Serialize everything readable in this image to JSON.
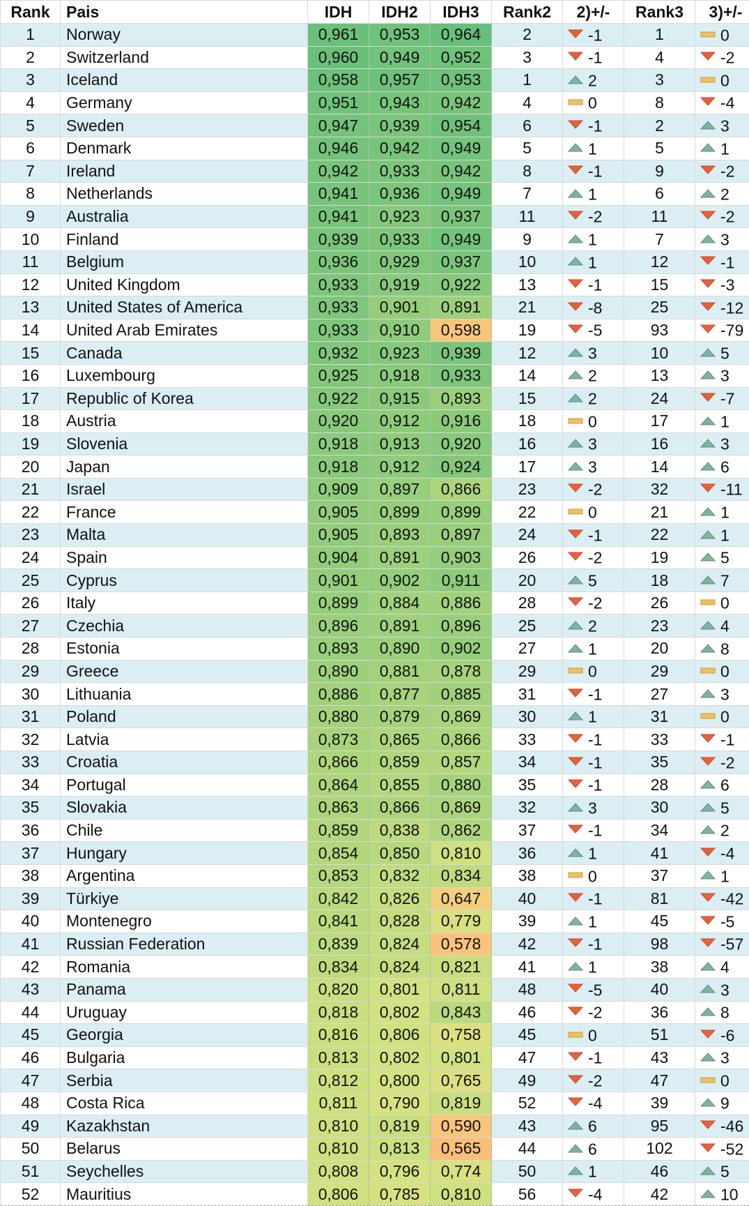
{
  "headers": [
    "Rank",
    "Pais",
    "IDH",
    "IDH2",
    "IDH3",
    "Rank2",
    "2)+/-",
    "Rank3",
    "3)+/-"
  ],
  "indicator_colors": {
    "up": "#7fb3a0",
    "down": "#e8603c",
    "same": "#f0c060"
  },
  "rows": [
    {
      "rank": "1",
      "pais": "Norway",
      "idh": "0,961",
      "idh2": "0,953",
      "idh3": "0,964",
      "rank2": "2",
      "c2": "-1",
      "rank3": "1",
      "c3": "0"
    },
    {
      "rank": "2",
      "pais": "Switzerland",
      "idh": "0,960",
      "idh2": "0,949",
      "idh3": "0,952",
      "rank2": "3",
      "c2": "-1",
      "rank3": "4",
      "c3": "-2"
    },
    {
      "rank": "3",
      "pais": "Iceland",
      "idh": "0,958",
      "idh2": "0,957",
      "idh3": "0,953",
      "rank2": "1",
      "c2": "2",
      "rank3": "3",
      "c3": "0"
    },
    {
      "rank": "4",
      "pais": "Germany",
      "idh": "0,951",
      "idh2": "0,943",
      "idh3": "0,942",
      "rank2": "4",
      "c2": "0",
      "rank3": "8",
      "c3": "-4"
    },
    {
      "rank": "5",
      "pais": "Sweden",
      "idh": "0,947",
      "idh2": "0,939",
      "idh3": "0,954",
      "rank2": "6",
      "c2": "-1",
      "rank3": "2",
      "c3": "3"
    },
    {
      "rank": "6",
      "pais": "Denmark",
      "idh": "0,946",
      "idh2": "0,942",
      "idh3": "0,949",
      "rank2": "5",
      "c2": "1",
      "rank3": "5",
      "c3": "1"
    },
    {
      "rank": "7",
      "pais": "Ireland",
      "idh": "0,942",
      "idh2": "0,933",
      "idh3": "0,942",
      "rank2": "8",
      "c2": "-1",
      "rank3": "9",
      "c3": "-2"
    },
    {
      "rank": "8",
      "pais": "Netherlands",
      "idh": "0,941",
      "idh2": "0,936",
      "idh3": "0,949",
      "rank2": "7",
      "c2": "1",
      "rank3": "6",
      "c3": "2"
    },
    {
      "rank": "9",
      "pais": "Australia",
      "idh": "0,941",
      "idh2": "0,923",
      "idh3": "0,937",
      "rank2": "11",
      "c2": "-2",
      "rank3": "11",
      "c3": "-2"
    },
    {
      "rank": "10",
      "pais": "Finland",
      "idh": "0,939",
      "idh2": "0,933",
      "idh3": "0,949",
      "rank2": "9",
      "c2": "1",
      "rank3": "7",
      "c3": "3"
    },
    {
      "rank": "11",
      "pais": "Belgium",
      "idh": "0,936",
      "idh2": "0,929",
      "idh3": "0,937",
      "rank2": "10",
      "c2": "1",
      "rank3": "12",
      "c3": "-1"
    },
    {
      "rank": "12",
      "pais": "United Kingdom",
      "idh": "0,933",
      "idh2": "0,919",
      "idh3": "0,922",
      "rank2": "13",
      "c2": "-1",
      "rank3": "15",
      "c3": "-3"
    },
    {
      "rank": "13",
      "pais": "United States of America",
      "idh": "0,933",
      "idh2": "0,901",
      "idh3": "0,891",
      "rank2": "21",
      "c2": "-8",
      "rank3": "25",
      "c3": "-12"
    },
    {
      "rank": "14",
      "pais": "United Arab Emirates",
      "idh": "0,933",
      "idh2": "0,910",
      "idh3": "0,598",
      "rank2": "19",
      "c2": "-5",
      "rank3": "93",
      "c3": "-79"
    },
    {
      "rank": "15",
      "pais": "Canada",
      "idh": "0,932",
      "idh2": "0,923",
      "idh3": "0,939",
      "rank2": "12",
      "c2": "3",
      "rank3": "10",
      "c3": "5"
    },
    {
      "rank": "16",
      "pais": "Luxembourg",
      "idh": "0,925",
      "idh2": "0,918",
      "idh3": "0,933",
      "rank2": "14",
      "c2": "2",
      "rank3": "13",
      "c3": "3"
    },
    {
      "rank": "17",
      "pais": "Republic of Korea",
      "idh": "0,922",
      "idh2": "0,915",
      "idh3": "0,893",
      "rank2": "15",
      "c2": "2",
      "rank3": "24",
      "c3": "-7"
    },
    {
      "rank": "18",
      "pais": "Austria",
      "idh": "0,920",
      "idh2": "0,912",
      "idh3": "0,916",
      "rank2": "18",
      "c2": "0",
      "rank3": "17",
      "c3": "1"
    },
    {
      "rank": "19",
      "pais": "Slovenia",
      "idh": "0,918",
      "idh2": "0,913",
      "idh3": "0,920",
      "rank2": "16",
      "c2": "3",
      "rank3": "16",
      "c3": "3"
    },
    {
      "rank": "20",
      "pais": "Japan",
      "idh": "0,918",
      "idh2": "0,912",
      "idh3": "0,924",
      "rank2": "17",
      "c2": "3",
      "rank3": "14",
      "c3": "6"
    },
    {
      "rank": "21",
      "pais": "Israel",
      "idh": "0,909",
      "idh2": "0,897",
      "idh3": "0,866",
      "rank2": "23",
      "c2": "-2",
      "rank3": "32",
      "c3": "-11"
    },
    {
      "rank": "22",
      "pais": "France",
      "idh": "0,905",
      "idh2": "0,899",
      "idh3": "0,899",
      "rank2": "22",
      "c2": "0",
      "rank3": "21",
      "c3": "1"
    },
    {
      "rank": "23",
      "pais": "Malta",
      "idh": "0,905",
      "idh2": "0,893",
      "idh3": "0,897",
      "rank2": "24",
      "c2": "-1",
      "rank3": "22",
      "c3": "1"
    },
    {
      "rank": "24",
      "pais": "Spain",
      "idh": "0,904",
      "idh2": "0,891",
      "idh3": "0,903",
      "rank2": "26",
      "c2": "-2",
      "rank3": "19",
      "c3": "5"
    },
    {
      "rank": "25",
      "pais": "Cyprus",
      "idh": "0,901",
      "idh2": "0,902",
      "idh3": "0,911",
      "rank2": "20",
      "c2": "5",
      "rank3": "18",
      "c3": "7"
    },
    {
      "rank": "26",
      "pais": "Italy",
      "idh": "0,899",
      "idh2": "0,884",
      "idh3": "0,886",
      "rank2": "28",
      "c2": "-2",
      "rank3": "26",
      "c3": "0"
    },
    {
      "rank": "27",
      "pais": "Czechia",
      "idh": "0,896",
      "idh2": "0,891",
      "idh3": "0,896",
      "rank2": "25",
      "c2": "2",
      "rank3": "23",
      "c3": "4"
    },
    {
      "rank": "28",
      "pais": "Estonia",
      "idh": "0,893",
      "idh2": "0,890",
      "idh3": "0,902",
      "rank2": "27",
      "c2": "1",
      "rank3": "20",
      "c3": "8"
    },
    {
      "rank": "29",
      "pais": "Greece",
      "idh": "0,890",
      "idh2": "0,881",
      "idh3": "0,878",
      "rank2": "29",
      "c2": "0",
      "rank3": "29",
      "c3": "0"
    },
    {
      "rank": "30",
      "pais": "Lithuania",
      "idh": "0,886",
      "idh2": "0,877",
      "idh3": "0,885",
      "rank2": "31",
      "c2": "-1",
      "rank3": "27",
      "c3": "3"
    },
    {
      "rank": "31",
      "pais": "Poland",
      "idh": "0,880",
      "idh2": "0,879",
      "idh3": "0,869",
      "rank2": "30",
      "c2": "1",
      "rank3": "31",
      "c3": "0"
    },
    {
      "rank": "32",
      "pais": "Latvia",
      "idh": "0,873",
      "idh2": "0,865",
      "idh3": "0,866",
      "rank2": "33",
      "c2": "-1",
      "rank3": "33",
      "c3": "-1"
    },
    {
      "rank": "33",
      "pais": "Croatia",
      "idh": "0,866",
      "idh2": "0,859",
      "idh3": "0,857",
      "rank2": "34",
      "c2": "-1",
      "rank3": "35",
      "c3": "-2"
    },
    {
      "rank": "34",
      "pais": "Portugal",
      "idh": "0,864",
      "idh2": "0,855",
      "idh3": "0,880",
      "rank2": "35",
      "c2": "-1",
      "rank3": "28",
      "c3": "6"
    },
    {
      "rank": "35",
      "pais": "Slovakia",
      "idh": "0,863",
      "idh2": "0,866",
      "idh3": "0,869",
      "rank2": "32",
      "c2": "3",
      "rank3": "30",
      "c3": "5"
    },
    {
      "rank": "36",
      "pais": "Chile",
      "idh": "0,859",
      "idh2": "0,838",
      "idh3": "0,862",
      "rank2": "37",
      "c2": "-1",
      "rank3": "34",
      "c3": "2"
    },
    {
      "rank": "37",
      "pais": "Hungary",
      "idh": "0,854",
      "idh2": "0,850",
      "idh3": "0,810",
      "rank2": "36",
      "c2": "1",
      "rank3": "41",
      "c3": "-4"
    },
    {
      "rank": "38",
      "pais": "Argentina",
      "idh": "0,853",
      "idh2": "0,832",
      "idh3": "0,834",
      "rank2": "38",
      "c2": "0",
      "rank3": "37",
      "c3": "1"
    },
    {
      "rank": "39",
      "pais": "Türkiye",
      "idh": "0,842",
      "idh2": "0,826",
      "idh3": "0,647",
      "rank2": "40",
      "c2": "-1",
      "rank3": "81",
      "c3": "-42"
    },
    {
      "rank": "40",
      "pais": "Montenegro",
      "idh": "0,841",
      "idh2": "0,828",
      "idh3": "0,779",
      "rank2": "39",
      "c2": "1",
      "rank3": "45",
      "c3": "-5"
    },
    {
      "rank": "41",
      "pais": "Russian Federation",
      "idh": "0,839",
      "idh2": "0,824",
      "idh3": "0,578",
      "rank2": "42",
      "c2": "-1",
      "rank3": "98",
      "c3": "-57"
    },
    {
      "rank": "42",
      "pais": "Romania",
      "idh": "0,834",
      "idh2": "0,824",
      "idh3": "0,821",
      "rank2": "41",
      "c2": "1",
      "rank3": "38",
      "c3": "4"
    },
    {
      "rank": "43",
      "pais": "Panama",
      "idh": "0,820",
      "idh2": "0,801",
      "idh3": "0,811",
      "rank2": "48",
      "c2": "-5",
      "rank3": "40",
      "c3": "3"
    },
    {
      "rank": "44",
      "pais": "Uruguay",
      "idh": "0,818",
      "idh2": "0,802",
      "idh3": "0,843",
      "rank2": "46",
      "c2": "-2",
      "rank3": "36",
      "c3": "8"
    },
    {
      "rank": "45",
      "pais": "Georgia",
      "idh": "0,816",
      "idh2": "0,806",
      "idh3": "0,758",
      "rank2": "45",
      "c2": "0",
      "rank3": "51",
      "c3": "-6"
    },
    {
      "rank": "46",
      "pais": "Bulgaria",
      "idh": "0,813",
      "idh2": "0,802",
      "idh3": "0,801",
      "rank2": "47",
      "c2": "-1",
      "rank3": "43",
      "c3": "3"
    },
    {
      "rank": "47",
      "pais": "Serbia",
      "idh": "0,812",
      "idh2": "0,800",
      "idh3": "0,765",
      "rank2": "49",
      "c2": "-2",
      "rank3": "47",
      "c3": "0"
    },
    {
      "rank": "48",
      "pais": "Costa Rica",
      "idh": "0,811",
      "idh2": "0,790",
      "idh3": "0,819",
      "rank2": "52",
      "c2": "-4",
      "rank3": "39",
      "c3": "9"
    },
    {
      "rank": "49",
      "pais": "Kazakhstan",
      "idh": "0,810",
      "idh2": "0,819",
      "idh3": "0,590",
      "rank2": "43",
      "c2": "6",
      "rank3": "95",
      "c3": "-46"
    },
    {
      "rank": "50",
      "pais": "Belarus",
      "idh": "0,810",
      "idh2": "0,813",
      "idh3": "0,565",
      "rank2": "44",
      "c2": "6",
      "rank3": "102",
      "c3": "-52"
    },
    {
      "rank": "51",
      "pais": "Seychelles",
      "idh": "0,808",
      "idh2": "0,796",
      "idh3": "0,774",
      "rank2": "50",
      "c2": "1",
      "rank3": "46",
      "c3": "5"
    },
    {
      "rank": "52",
      "pais": "Mauritius",
      "idh": "0,806",
      "idh2": "0,785",
      "idh3": "0,810",
      "rank2": "56",
      "c2": "-4",
      "rank3": "42",
      "c3": "10"
    }
  ]
}
